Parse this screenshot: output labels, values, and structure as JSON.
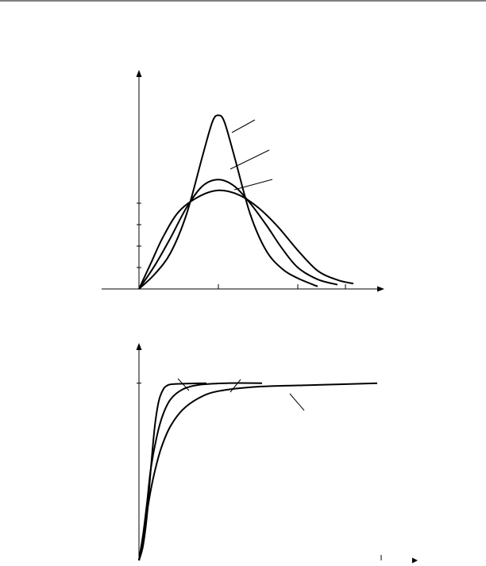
{
  "chart_data": [
    {
      "type": "line",
      "title": "",
      "xlabel": "",
      "ylabel": "",
      "grid": false,
      "xlim": [
        0,
        6
      ],
      "ylim": [
        0,
        10
      ],
      "xticks": [
        2,
        4,
        5.2
      ],
      "yticks": [
        1,
        2,
        3,
        4
      ],
      "series": [
        {
          "values": [
            [
              0,
              0
            ],
            [
              0.4,
              0.7
            ],
            [
              0.8,
              1.7
            ],
            [
              1.2,
              3.5
            ],
            [
              1.6,
              6.2
            ],
            [
              1.85,
              7.8
            ],
            [
              2.0,
              8.1
            ],
            [
              2.15,
              7.8
            ],
            [
              2.4,
              6.2
            ],
            [
              2.8,
              3.5
            ],
            [
              3.2,
              1.8
            ],
            [
              3.6,
              0.95
            ],
            [
              4.0,
              0.5
            ],
            [
              4.5,
              0.12
            ]
          ]
        },
        {
          "values": [
            [
              0,
              0
            ],
            [
              0.4,
              1.1
            ],
            [
              0.8,
              2.4
            ],
            [
              1.2,
              3.8
            ],
            [
              1.6,
              4.8
            ],
            [
              2.0,
              5.1
            ],
            [
              2.4,
              4.8
            ],
            [
              2.8,
              4.0
            ],
            [
              3.2,
              3.0
            ],
            [
              3.6,
              1.9
            ],
            [
              4.0,
              1.0
            ],
            [
              4.5,
              0.45
            ],
            [
              5.0,
              0.2
            ]
          ]
        },
        {
          "values": [
            [
              0,
              0
            ],
            [
              0.3,
              1.2
            ],
            [
              0.6,
              2.4
            ],
            [
              1.0,
              3.6
            ],
            [
              1.5,
              4.3
            ],
            [
              2.0,
              4.6
            ],
            [
              2.5,
              4.4
            ],
            [
              3.0,
              3.8
            ],
            [
              3.5,
              2.9
            ],
            [
              4.0,
              1.8
            ],
            [
              4.5,
              0.85
            ],
            [
              5.0,
              0.42
            ],
            [
              5.4,
              0.25
            ]
          ]
        }
      ]
    },
    {
      "type": "line",
      "title": "",
      "xlabel": "",
      "ylabel": "",
      "grid": false,
      "xlim": [
        0,
        6
      ],
      "ylim": [
        0,
        1.2
      ],
      "yticks": [
        1
      ],
      "xticks": [
        6.1
      ],
      "series": [
        {
          "values": [
            [
              0,
              0
            ],
            [
              0.1,
              0.08
            ],
            [
              0.2,
              0.25
            ],
            [
              0.3,
              0.52
            ],
            [
              0.4,
              0.76
            ],
            [
              0.5,
              0.9
            ],
            [
              0.6,
              0.96
            ],
            [
              0.7,
              0.985
            ],
            [
              0.9,
              0.995
            ],
            [
              1.7,
              1.0
            ]
          ]
        },
        {
          "values": [
            [
              0,
              0
            ],
            [
              0.1,
              0.14
            ],
            [
              0.2,
              0.32
            ],
            [
              0.3,
              0.52
            ],
            [
              0.45,
              0.7
            ],
            [
              0.6,
              0.82
            ],
            [
              0.8,
              0.91
            ],
            [
              1.1,
              0.965
            ],
            [
              1.5,
              0.99
            ],
            [
              2.2,
              1.0
            ],
            [
              3.1,
              1.0
            ]
          ]
        },
        {
          "values": [
            [
              0,
              0
            ],
            [
              0.15,
              0.2
            ],
            [
              0.3,
              0.4
            ],
            [
              0.45,
              0.55
            ],
            [
              0.6,
              0.66
            ],
            [
              0.8,
              0.76
            ],
            [
              1.1,
              0.85
            ],
            [
              1.5,
              0.915
            ],
            [
              2.0,
              0.955
            ],
            [
              3.0,
              0.98
            ],
            [
              4.5,
              0.99
            ],
            [
              6.0,
              1.0
            ]
          ]
        }
      ]
    }
  ]
}
